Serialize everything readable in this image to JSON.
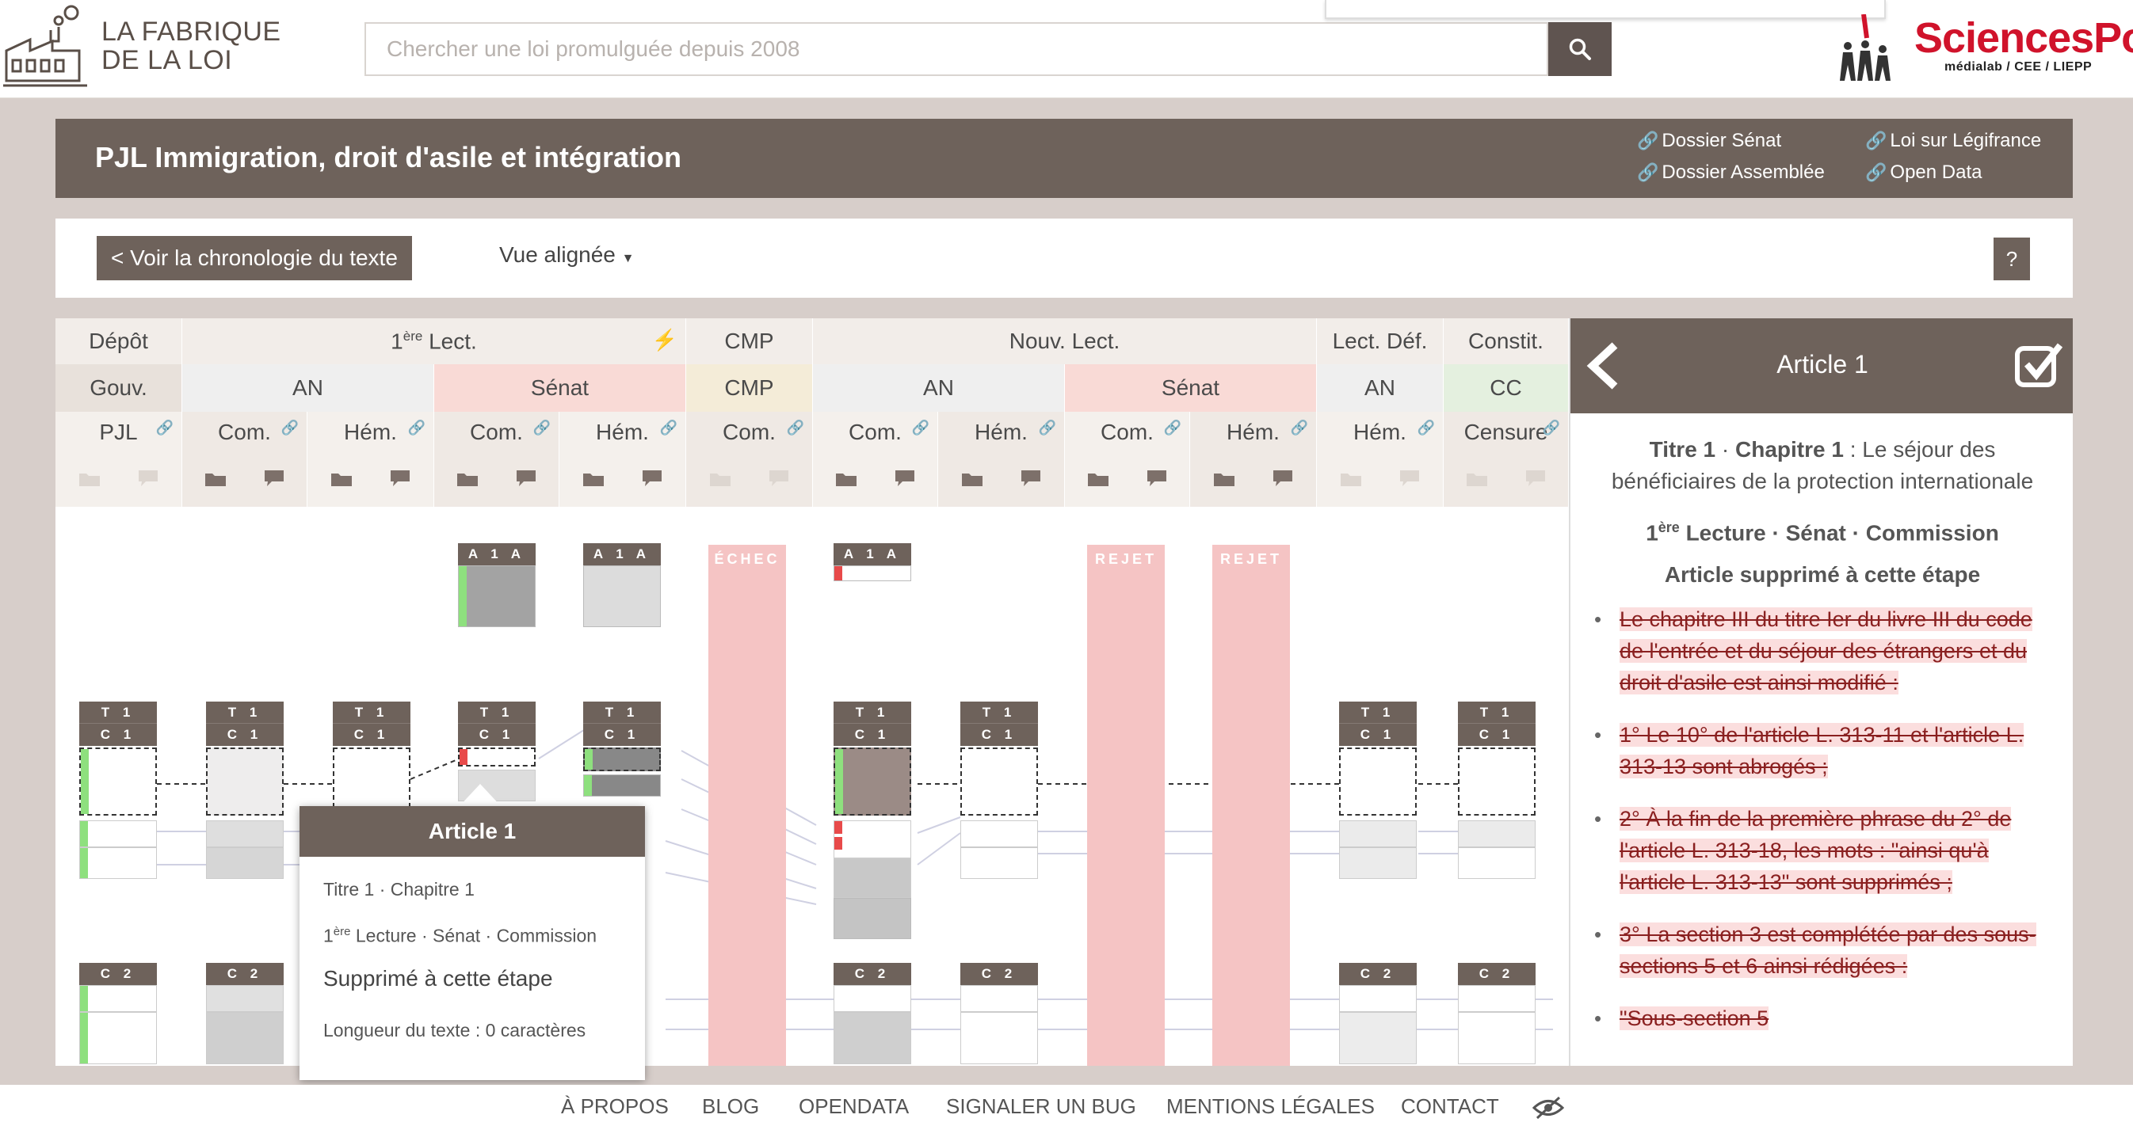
{
  "brand": {
    "line1": "LA FABRIQUE",
    "line2": "DE LA LOI"
  },
  "search": {
    "placeholder": "Chercher une loi promulguée depuis 2008",
    "icon": "search-icon"
  },
  "partner": {
    "name": "SciencesPo",
    "sub": "médialab / CEE / LIEPP"
  },
  "title": "PJL Immigration, droit d'asile et intégration",
  "links": [
    "Dossier Sénat",
    "Dossier Assemblée",
    "Loi sur Légifrance",
    "Open Data"
  ],
  "actions": {
    "chrono": "< Voir la chronologie du texte",
    "view": "Vue alignée",
    "help": "?"
  },
  "header": {
    "row1": [
      {
        "label": "Dépôt"
      },
      {
        "label": "1",
        "sup": "ère",
        "label2": " Lect."
      },
      {
        "label": "CMP"
      },
      {
        "label": "Nouv. Lect."
      },
      {
        "label": "Lect. Déf."
      },
      {
        "label": "Constit."
      }
    ],
    "row2": [
      "Gouv.",
      "AN",
      "Sénat",
      "CMP",
      "AN",
      "Sénat",
      "AN",
      "CC"
    ],
    "row3": [
      "PJL",
      "Com.",
      "Hém.",
      "Com.",
      "Hém.",
      "Com.",
      "Com.",
      "Hém.",
      "Com.",
      "Hém.",
      "Hém.",
      "Censure"
    ]
  },
  "bands": {
    "echec": "ÉCHEC",
    "rejet1": "REJET",
    "rejet2": "REJET"
  },
  "tags": {
    "a1a": "A 1 A",
    "t1": "T 1",
    "c1": "C 1",
    "c2": "C 2"
  },
  "tooltip": {
    "title": "Article 1",
    "line1": "Titre 1 · Chapitre 1",
    "line2_num": "1",
    "line2_sup": "ère",
    "line2_rest": " Lecture · Sénat · Commission",
    "line3": "Supprimé à cette étape",
    "line4": "Longueur du texte : 0 caractères"
  },
  "panel": {
    "title": "Article 1",
    "loc_titre": "Titre 1",
    "loc_chap": "Chapitre 1",
    "loc_rest": " : Le séjour des bénéficiaires de la protection internationale",
    "lecture_num": "1",
    "lecture_sup": "ère",
    "lecture_rest": " Lecture",
    "lecture_sep1": " · ",
    "lecture_inst": "Sénat",
    "lecture_sep2": " · ",
    "lecture_step": "Commission",
    "status": "Article supprimé à cette étape",
    "items": [
      "Le chapitre III du titre Ier du livre III du code de l'entrée et du séjour des étrangers et du droit d'asile est ainsi modifié :",
      "1° Le 10° de l'article L. 313-11 et l'article L. 313-13 sont abrogés ;",
      "2° À la fin de la première phrase du 2° de l'article L. 313-18, les mots : \"ainsi qu'à l'article L. 313-13\" sont supprimés ;",
      "3° La section 3 est complétée par des sous-sections 5 et 6 ainsi rédigées :",
      "\"Sous-section 5"
    ]
  },
  "footer": [
    "À PROPOS",
    "BLOG",
    "OPENDATA",
    "SIGNALER UN BUG",
    "MENTIONS LÉGALES",
    "CONTACT"
  ],
  "colors": {
    "brown": "#6e625b",
    "pinkband": "#f5c4c4",
    "green": "#8ee07e",
    "red": "#e84a4a",
    "sciencespo": "#d0132b"
  }
}
